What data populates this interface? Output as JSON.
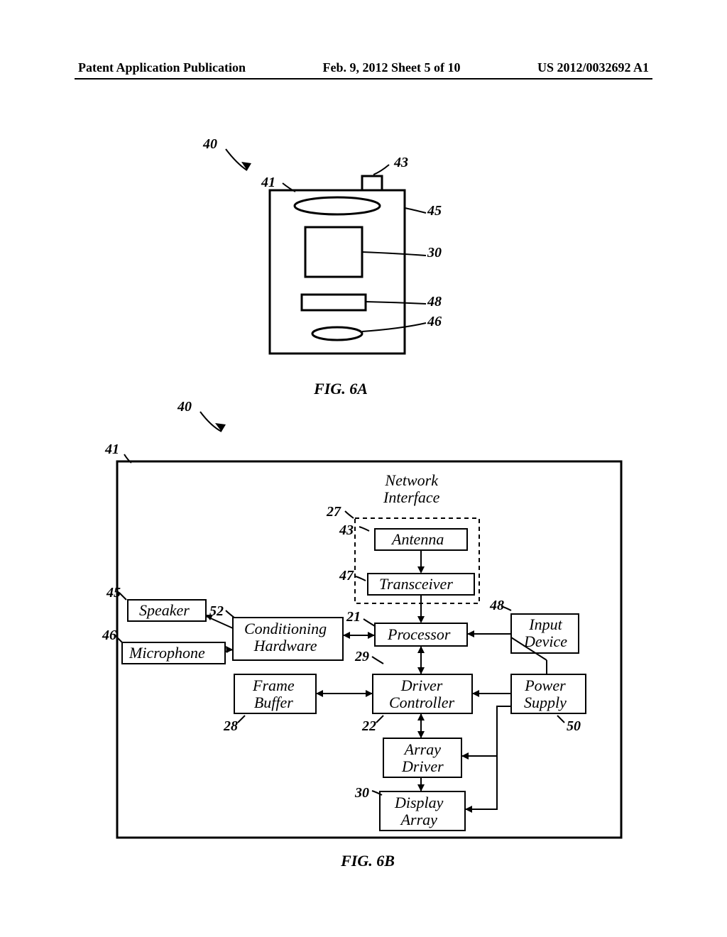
{
  "header": {
    "left": "Patent Application Publication",
    "mid": "Feb. 9, 2012   Sheet 5 of 10",
    "right": "US 2012/0032692 A1"
  },
  "fig6a": {
    "caption": "FIG. 6A",
    "refs": {
      "r40": "40",
      "r41": "41",
      "r43": "43",
      "r45": "45",
      "r30": "30",
      "r48": "48",
      "r46": "46"
    }
  },
  "fig6b": {
    "caption": "FIG. 6B",
    "refs": {
      "r40": "40",
      "r41": "41",
      "r27": "27",
      "r43": "43",
      "r47": "47",
      "r45": "45",
      "r46": "46",
      "r52": "52",
      "r21": "21",
      "r29": "29",
      "r28": "28",
      "r22": "22",
      "r48": "48",
      "r50": "50",
      "r30": "30"
    },
    "blocks": {
      "network_interface": "Network\nInterface",
      "antenna": "Antenna",
      "transceiver": "Transceiver",
      "speaker": "Speaker",
      "microphone": "Microphone",
      "conditioning": "Conditioning\nHardware",
      "processor": "Processor",
      "input_device": "Input\nDevice",
      "frame_buffer": "Frame\nBuffer",
      "driver_controller": "Driver\nController",
      "power_supply": "Power\nSupply",
      "array_driver": "Array\nDriver",
      "display_array": "Display\nArray"
    }
  },
  "style": {
    "stroke": "#000000",
    "stroke_width": 2,
    "dash": "6,5",
    "font_size_label": 20,
    "font_size_block": 22
  }
}
